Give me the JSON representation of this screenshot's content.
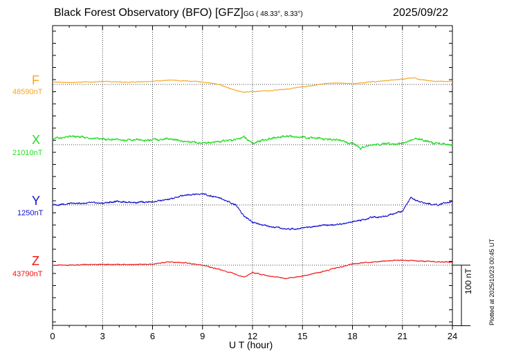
{
  "title": "Black Forest Observatory (BFO)",
  "gfz": "[GFZ]",
  "coords": "GG ( 48.33°,   8.33°)",
  "date": "2025/09/22",
  "footer": "Plotted at 2025/10/23 00:45 UT",
  "chart_data": {
    "type": "line",
    "xlabel": "U T (hour)",
    "xlim": [
      0,
      24
    ],
    "xticks": [
      "0",
      "3",
      "6",
      "9",
      "12",
      "15",
      "18",
      "21",
      "24"
    ],
    "scale": {
      "label": "100 nT",
      "value_nT": 100
    },
    "grid": true,
    "series": [
      {
        "name": "F",
        "baseline_label": "48590nT",
        "baseline_nT": 48590,
        "color": "#f5a623",
        "x": [
          0,
          1,
          2,
          3,
          4,
          5,
          6,
          7,
          8,
          9,
          10,
          11,
          11.5,
          12,
          13,
          14,
          15,
          16,
          17,
          18,
          19,
          20,
          21,
          21.7,
          22,
          23,
          24
        ],
        "y": [
          4,
          3,
          4,
          5,
          4,
          4,
          5,
          7,
          6,
          4,
          0,
          -10,
          -13,
          -12,
          -10,
          -8,
          -4,
          0,
          3,
          1,
          4,
          6,
          9,
          11,
          8,
          5,
          5
        ]
      },
      {
        "name": "X",
        "baseline_label": "21010nT",
        "baseline_nT": 21010,
        "color": "#22dd22",
        "x": [
          0,
          1,
          2,
          3,
          4,
          5,
          6,
          7,
          8,
          9,
          10,
          11,
          11.5,
          12,
          13,
          14,
          15,
          16,
          17,
          18,
          18.5,
          19,
          20,
          21,
          22,
          23,
          24
        ],
        "y": [
          10,
          13,
          12,
          9,
          8,
          7,
          8,
          10,
          5,
          3,
          5,
          8,
          14,
          2,
          10,
          14,
          12,
          10,
          8,
          2,
          -6,
          0,
          1,
          3,
          10,
          2,
          0
        ]
      },
      {
        "name": "Y",
        "baseline_label": "1250nT",
        "baseline_nT": 1250,
        "color": "#1010cc",
        "x": [
          0,
          1,
          2,
          3,
          4,
          5,
          6,
          7,
          7.5,
          8,
          9,
          10,
          11,
          11.5,
          12,
          13,
          14,
          15,
          16,
          17,
          18,
          19,
          20,
          21,
          21.5,
          22,
          23,
          24
        ],
        "y": [
          0,
          2,
          3,
          3,
          6,
          4,
          5,
          9,
          13,
          17,
          18,
          12,
          0,
          -18,
          -28,
          -36,
          -40,
          -38,
          -34,
          -33,
          -28,
          -22,
          -18,
          -10,
          12,
          5,
          0,
          5
        ]
      },
      {
        "name": "Z",
        "baseline_label": "43790nT",
        "baseline_nT": 43790,
        "color": "#ee1111",
        "x": [
          0,
          1,
          2,
          3,
          4,
          5,
          6,
          7,
          8,
          9,
          10,
          11,
          11.5,
          12,
          13,
          14,
          15,
          16,
          17,
          18,
          19,
          20,
          21,
          22,
          23,
          24
        ],
        "y": [
          0,
          0,
          1,
          1,
          1,
          1,
          2,
          5,
          4,
          0,
          -7,
          -15,
          -20,
          -12,
          -18,
          -22,
          -18,
          -12,
          -5,
          2,
          5,
          7,
          8,
          7,
          6,
          5
        ]
      }
    ]
  }
}
